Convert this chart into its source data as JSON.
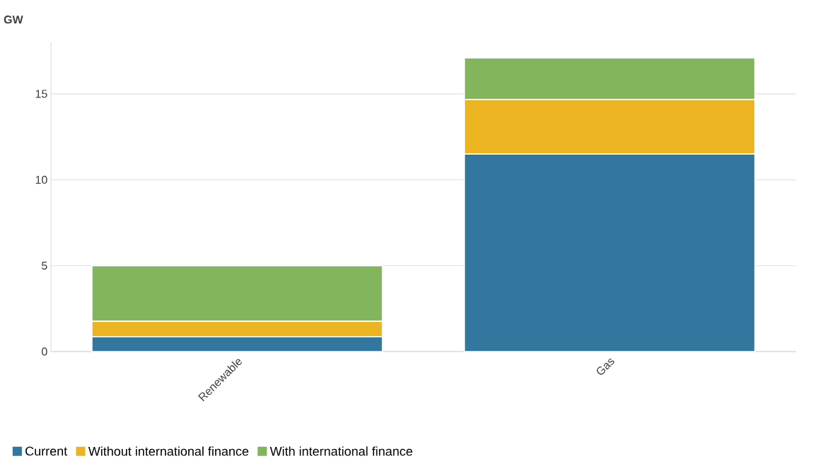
{
  "chart_data": {
    "type": "bar",
    "stacked": true,
    "ylabel": "GW",
    "categories": [
      "Renewable",
      "Gas"
    ],
    "series": [
      {
        "name": "Current",
        "color": "#33779f",
        "values": [
          0.86,
          11.5
        ]
      },
      {
        "name": "Without international finance",
        "color": "#edb422",
        "values": [
          0.9,
          3.17
        ]
      },
      {
        "name": "With international finance",
        "color": "#82b55c",
        "values": [
          3.23,
          2.43
        ]
      }
    ],
    "ylim": [
      0,
      18
    ],
    "yticks": [
      0,
      5,
      10,
      15
    ],
    "grid": "y",
    "legend": "bottom left"
  }
}
